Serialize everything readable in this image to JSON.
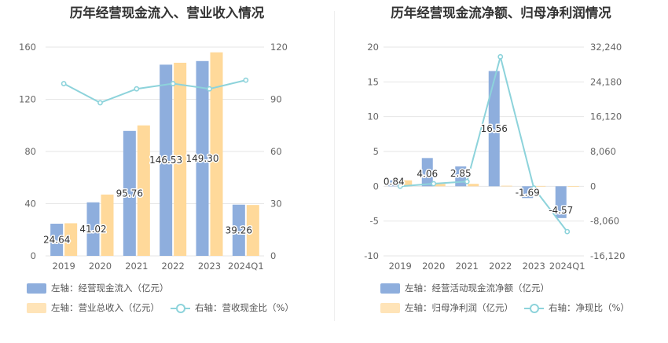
{
  "chart_data": [
    {
      "type": "bar",
      "title": "历年经营现金流入、营业收入情况",
      "categories": [
        "2019",
        "2020",
        "2021",
        "2022",
        "2023",
        "2024Q1"
      ],
      "series": [
        {
          "name": "左轴：经营现金流入（亿元）",
          "axis": "left",
          "kind": "bar",
          "color": "#8EAEDD",
          "values": [
            24.64,
            41.02,
            95.76,
            146.53,
            149.3,
            39.26
          ],
          "labels": [
            "24.64",
            "41.02",
            "95.76",
            "146.53",
            "149.30",
            "39.26"
          ]
        },
        {
          "name": "左轴：营业总收入（亿元）",
          "axis": "left",
          "kind": "bar",
          "color": "#FFD99A",
          "values": [
            25,
            47,
            100,
            148,
            156,
            39
          ]
        },
        {
          "name": "右轴：营收现金比（%）",
          "axis": "right",
          "kind": "line",
          "color": "#8DD3DB",
          "values": [
            99,
            88,
            96,
            99,
            96,
            101
          ]
        }
      ],
      "left_axis": {
        "min": 0,
        "max": 160,
        "ticks": [
          "0",
          "40",
          "80",
          "120",
          "160"
        ]
      },
      "right_axis": {
        "min": 0,
        "max": 120,
        "ticks": [
          "0",
          "30",
          "60",
          "90",
          "120"
        ]
      }
    },
    {
      "type": "bar",
      "title": "历年经营现金流净额、归母净利润情况",
      "categories": [
        "2019",
        "2020",
        "2021",
        "2022",
        "2023",
        "2024Q1"
      ],
      "series": [
        {
          "name": "左轴：经营活动现金流净额（亿元）",
          "axis": "left",
          "kind": "bar",
          "color": "#8EAEDD",
          "values": [
            0.84,
            4.06,
            2.85,
            16.56,
            -1.69,
            -4.57
          ],
          "labels": [
            "0.84",
            "4.06",
            "2.85",
            "16.56",
            "-1.69",
            "-4.57"
          ]
        },
        {
          "name": "左轴：归母净利润（亿元）",
          "axis": "left",
          "kind": "bar",
          "color": "#FFD99A",
          "values": [
            0.85,
            0.35,
            0.35,
            0.08,
            0.05,
            0.04
          ]
        },
        {
          "name": "右轴：净现比（%）",
          "axis": "right",
          "kind": "line",
          "color": "#8DD3DB",
          "values": [
            0,
            600,
            1100,
            30000,
            -400,
            -10500
          ]
        }
      ],
      "left_axis": {
        "min": -10,
        "max": 20,
        "ticks": [
          "-10",
          "-5",
          "0",
          "5",
          "10",
          "15",
          "20"
        ]
      },
      "right_axis": {
        "min": -16120,
        "max": 32240,
        "ticks": [
          "-16,120",
          "-8,060",
          "0",
          "8,060",
          "16,120",
          "24,180",
          "32,240"
        ]
      }
    }
  ]
}
